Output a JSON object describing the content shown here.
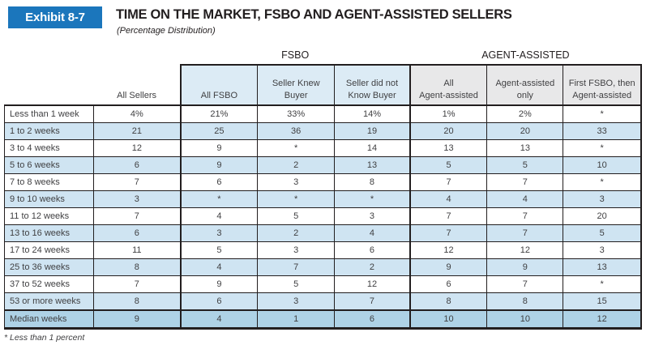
{
  "page": {
    "exhibit_label": "Exhibit 8-7",
    "title": "TIME ON THE MARKET, FSBO AND AGENT-ASSISTED SELLERS",
    "subtitle": "(Percentage Distribution)",
    "footnote": "* Less than 1 percent"
  },
  "table": {
    "group_headers": {
      "fsbo": "FSBO",
      "agent": "AGENT-ASSISTED"
    },
    "columns": [
      {
        "line1": "All Sellers",
        "line2": ""
      },
      {
        "line1": "All FSBO",
        "line2": ""
      },
      {
        "line1": "Seller Knew",
        "line2": "Buyer"
      },
      {
        "line1": "Seller did not",
        "line2": "Know Buyer"
      },
      {
        "line1": "All",
        "line2": "Agent-assisted"
      },
      {
        "line1": "Agent-assisted",
        "line2": "only"
      },
      {
        "line1": "First FSBO, then",
        "line2": "Agent-assisted"
      }
    ],
    "rows": [
      {
        "label": "Less than 1 week",
        "values": [
          "4%",
          "21%",
          "33%",
          "14%",
          "1%",
          "2%",
          "*"
        ]
      },
      {
        "label": "1 to 2 weeks",
        "values": [
          "21",
          "25",
          "36",
          "19",
          "20",
          "20",
          "33"
        ]
      },
      {
        "label": "3 to 4 weeks",
        "values": [
          "12",
          "9",
          "*",
          "14",
          "13",
          "13",
          "*"
        ]
      },
      {
        "label": "5 to 6 weeks",
        "values": [
          "6",
          "9",
          "2",
          "13",
          "5",
          "5",
          "10"
        ]
      },
      {
        "label": "7 to 8 weeks",
        "values": [
          "7",
          "6",
          "3",
          "8",
          "7",
          "7",
          "*"
        ]
      },
      {
        "label": "9 to 10 weeks",
        "values": [
          "3",
          "*",
          "*",
          "*",
          "4",
          "4",
          "3"
        ]
      },
      {
        "label": "11 to 12 weeks",
        "values": [
          "7",
          "4",
          "5",
          "3",
          "7",
          "7",
          "20"
        ]
      },
      {
        "label": "13 to 16 weeks",
        "values": [
          "6",
          "3",
          "2",
          "4",
          "7",
          "7",
          "5"
        ]
      },
      {
        "label": "17 to 24 weeks",
        "values": [
          "11",
          "5",
          "3",
          "6",
          "12",
          "12",
          "3"
        ]
      },
      {
        "label": "25 to 36 weeks",
        "values": [
          "8",
          "4",
          "7",
          "2",
          "9",
          "9",
          "13"
        ]
      },
      {
        "label": "37 to 52 weeks",
        "values": [
          "7",
          "9",
          "5",
          "12",
          "6",
          "7",
          "*"
        ]
      },
      {
        "label": "53 or more weeks",
        "values": [
          "8",
          "6",
          "3",
          "7",
          "8",
          "8",
          "15"
        ]
      },
      {
        "label": "Median weeks",
        "values": [
          "9",
          "4",
          "1",
          "6",
          "10",
          "10",
          "12"
        ]
      }
    ]
  },
  "colors": {
    "accent_blue": "#1b76bc",
    "row_alt_blue": "#cfe4f2",
    "median_row_blue": "#aed2e6",
    "fsbo_header_bg": "#dcebf5",
    "agent_header_bg": "#e8e8e9",
    "border_black": "#221e1f",
    "table_text": "#3f3f41"
  }
}
